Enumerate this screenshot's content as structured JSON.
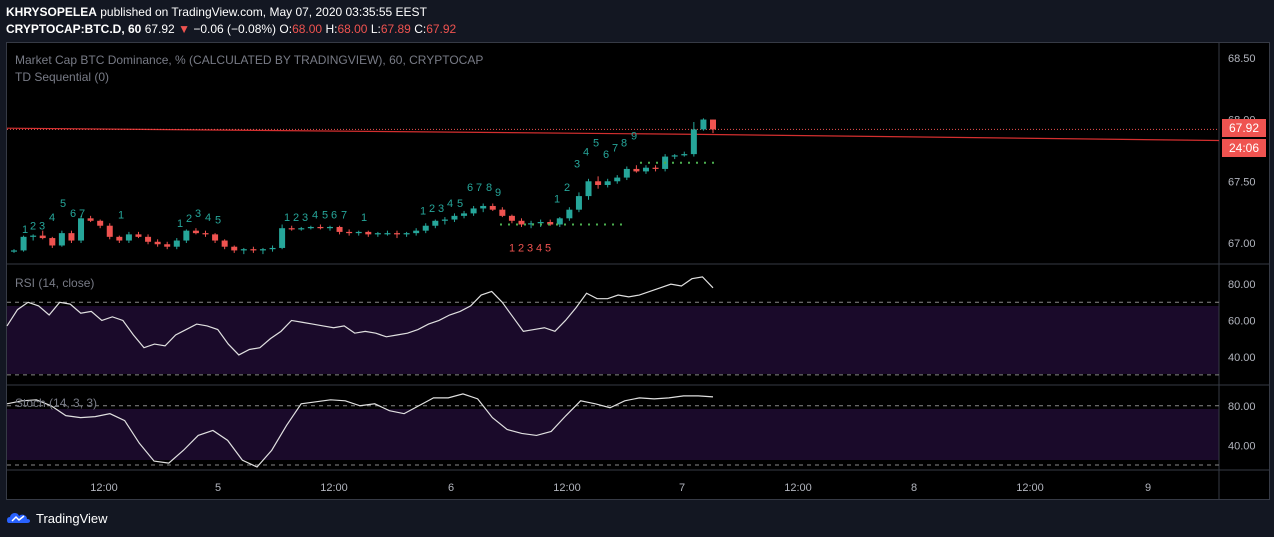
{
  "publish_line": {
    "author": "KHRYSOPELEA",
    "rest": " published on TradingView.com, May 07, 2020 03:35:55 EEST"
  },
  "quote_line": {
    "symbol": "CRYPTOCAP:BTC.D, 60",
    "last": "67.92",
    "change": "−0.06 (−0.08%)",
    "o_label": "O:",
    "o": "68.00",
    "h_label": "H:",
    "h": "68.00",
    "l_label": "L:",
    "l": "67.89",
    "c_label": "C:",
    "c": "67.92"
  },
  "main_pane": {
    "title": "Market Cap BTC Dominance, % (CALCULATED BY TRADINGVIEW), 60, CRYPTOCAP",
    "indicator": "TD Sequential (0)",
    "price_ticks": [
      "68.50",
      "68.00",
      "67.50",
      "67.00"
    ],
    "last_price_tag": "67.92",
    "countdown_tag": "24:06"
  },
  "rsi_pane": {
    "title": "RSI (14, close)",
    "ticks": [
      "80.00",
      "60.00",
      "40.00"
    ]
  },
  "stoch_pane": {
    "title": "Stoch (14, 3, 3)",
    "ticks": [
      "80.00",
      "40.00"
    ]
  },
  "time_axis": [
    "12:00",
    "5",
    "12:00",
    "6",
    "12:00",
    "7",
    "12:00",
    "8",
    "12:00",
    "9"
  ],
  "brand": {
    "name": "TradingView"
  },
  "colors": {
    "up": "#26a69a",
    "down": "#ef5350",
    "accent": "#2962ff",
    "rsi_bg": "#1a0a2a"
  },
  "chart_data": {
    "type": "candlestick",
    "series": [
      {
        "name": "BTC.D",
        "values": [
          [
            66.93,
            66.95,
            66.92,
            66.94
          ],
          [
            66.94,
            67.06,
            66.93,
            67.05
          ],
          [
            67.05,
            67.07,
            67.02,
            67.06
          ],
          [
            67.06,
            67.1,
            67.03,
            67.04
          ],
          [
            67.04,
            67.05,
            66.96,
            66.98
          ],
          [
            66.98,
            67.1,
            66.97,
            67.08
          ],
          [
            67.08,
            67.1,
            67.0,
            67.02
          ],
          [
            67.02,
            67.22,
            67.0,
            67.2
          ],
          [
            67.2,
            67.22,
            67.17,
            67.18
          ],
          [
            67.18,
            67.19,
            67.12,
            67.14
          ],
          [
            67.14,
            67.16,
            67.03,
            67.05
          ],
          [
            67.05,
            67.06,
            67.0,
            67.02
          ],
          [
            67.02,
            67.09,
            67.0,
            67.07
          ],
          [
            67.07,
            67.09,
            67.04,
            67.05
          ],
          [
            67.05,
            67.07,
            66.99,
            67.01
          ],
          [
            67.01,
            67.03,
            66.97,
            66.99
          ],
          [
            66.99,
            67.01,
            66.95,
            66.97
          ],
          [
            66.97,
            67.04,
            66.95,
            67.02
          ],
          [
            67.02,
            67.11,
            67.0,
            67.1
          ],
          [
            67.1,
            67.12,
            67.07,
            67.08
          ],
          [
            67.08,
            67.1,
            67.05,
            67.07
          ],
          [
            67.07,
            67.08,
            67.0,
            67.02
          ],
          [
            67.02,
            67.03,
            66.95,
            66.97
          ],
          [
            66.97,
            66.98,
            66.92,
            66.94
          ],
          [
            66.94,
            66.96,
            66.91,
            66.95
          ],
          [
            66.95,
            66.97,
            66.92,
            66.94
          ],
          [
            66.94,
            66.96,
            66.91,
            66.95
          ],
          [
            66.95,
            66.98,
            66.93,
            66.96
          ],
          [
            66.96,
            67.15,
            66.95,
            67.12
          ],
          [
            67.12,
            67.14,
            67.1,
            67.11
          ],
          [
            67.11,
            67.13,
            67.1,
            67.12
          ],
          [
            67.12,
            67.14,
            67.11,
            67.13
          ],
          [
            67.13,
            67.15,
            67.11,
            67.12
          ],
          [
            67.12,
            67.14,
            67.1,
            67.13
          ],
          [
            67.13,
            67.14,
            67.07,
            67.09
          ],
          [
            67.09,
            67.11,
            67.06,
            67.08
          ],
          [
            67.08,
            67.1,
            67.06,
            67.09
          ],
          [
            67.09,
            67.1,
            67.05,
            67.07
          ],
          [
            67.07,
            67.09,
            67.05,
            67.08
          ],
          [
            67.08,
            67.1,
            67.06,
            67.08
          ],
          [
            67.08,
            67.1,
            67.04,
            67.07
          ],
          [
            67.07,
            67.09,
            67.05,
            67.08
          ],
          [
            67.08,
            67.12,
            67.06,
            67.1
          ],
          [
            67.1,
            67.16,
            67.08,
            67.14
          ],
          [
            67.14,
            67.19,
            67.12,
            67.18
          ],
          [
            67.18,
            67.21,
            67.15,
            67.19
          ],
          [
            67.19,
            67.24,
            67.17,
            67.22
          ],
          [
            67.22,
            67.26,
            67.2,
            67.24
          ],
          [
            67.24,
            67.3,
            67.22,
            67.28
          ],
          [
            67.28,
            67.32,
            67.25,
            67.3
          ],
          [
            67.3,
            67.32,
            67.26,
            67.27
          ],
          [
            67.27,
            67.29,
            67.21,
            67.22
          ],
          [
            67.22,
            67.23,
            67.16,
            67.18
          ],
          [
            67.18,
            67.2,
            67.13,
            67.15
          ],
          [
            67.15,
            67.18,
            67.12,
            67.16
          ],
          [
            67.16,
            67.19,
            67.13,
            67.17
          ],
          [
            67.17,
            67.19,
            67.14,
            67.15
          ],
          [
            67.15,
            67.21,
            67.13,
            67.2
          ],
          [
            67.2,
            67.29,
            67.18,
            67.27
          ],
          [
            67.27,
            67.41,
            67.25,
            67.38
          ],
          [
            67.38,
            67.52,
            67.35,
            67.5
          ],
          [
            67.5,
            67.54,
            67.44,
            67.47
          ],
          [
            67.47,
            67.52,
            67.45,
            67.5
          ],
          [
            67.5,
            67.55,
            67.48,
            67.53
          ],
          [
            67.53,
            67.62,
            67.51,
            67.6
          ],
          [
            67.6,
            67.63,
            67.57,
            67.58
          ],
          [
            67.58,
            67.63,
            67.56,
            67.61
          ],
          [
            67.61,
            67.63,
            67.58,
            67.6
          ],
          [
            67.6,
            67.72,
            67.58,
            67.7
          ],
          [
            67.7,
            67.72,
            67.68,
            67.71
          ],
          [
            67.71,
            67.74,
            67.7,
            67.72
          ],
          [
            67.72,
            67.98,
            67.7,
            67.92
          ],
          [
            67.92,
            68.01,
            67.91,
            68.0
          ],
          [
            68.0,
            68.0,
            67.89,
            67.92
          ]
        ]
      }
    ]
  }
}
